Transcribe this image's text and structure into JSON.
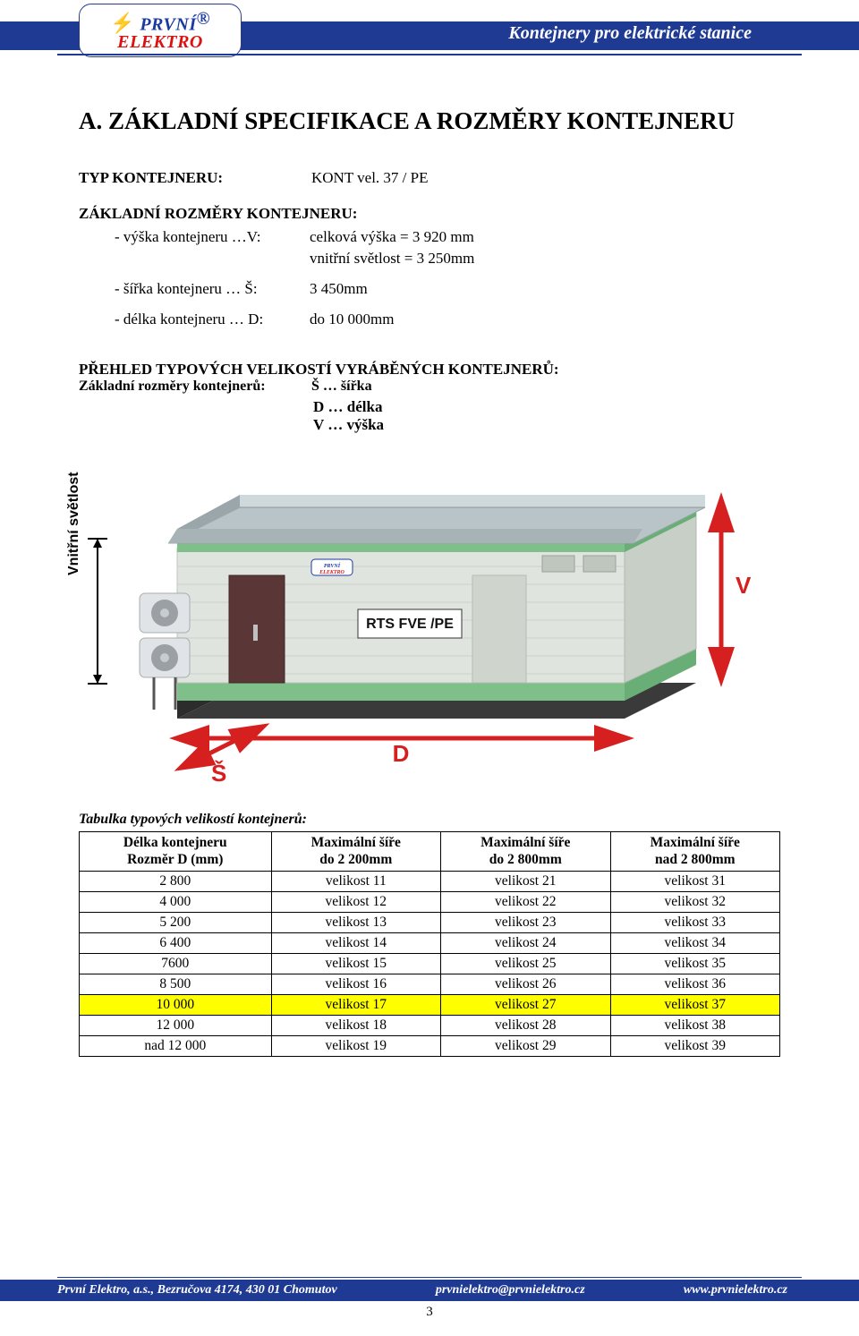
{
  "header": {
    "logo_line1": "PRVNÍ",
    "logo_line2": "ELEKTRO",
    "logo_reg": "®",
    "title": "Kontejnery pro elektrické stanice"
  },
  "section_title": "A. ZÁKLADNÍ SPECIFIKACE A ROZMĚRY KONTEJNERU",
  "spec": {
    "type_label": "TYP KONTEJNERU:",
    "type_value": "KONT vel. 37 / PE",
    "dims_head": "ZÁKLADNÍ ROZMĚRY KONTEJNERU:",
    "rows": [
      {
        "label": "- výška kontejneru …V:",
        "value": "celková výška  = 3 920 mm"
      },
      {
        "label": "",
        "value": "vnitřní světlost = 3 250mm"
      },
      {
        "label": "- šířka kontejneru … Š:",
        "value": "3 450mm"
      },
      {
        "label": "- délka kontejneru … D:",
        "value": "do 10 000mm"
      }
    ]
  },
  "overview": {
    "head": "PŘEHLED TYPOVÝCH VELIKOSTÍ VYRÁBĚNÝCH KONTEJNERŮ:",
    "sub_label": "Základní rozměry kontejnerů:",
    "s": "Š … šířka",
    "d": "D … délka",
    "v": "V … výška"
  },
  "diagram": {
    "vn_label": "Vnitřní světlost",
    "v_label": "V",
    "d_label": "D",
    "s_label": "Š",
    "panel_text": "RTS FVE /PE",
    "colors": {
      "roof_top": "#b9c4c8",
      "roof_side": "#8b969a",
      "wall_light": "#dfe4de",
      "wall_shadow": "#c8cfc7",
      "trim_green": "#7fbf8a",
      "base_dark": "#3a3a3a",
      "arrow_red": "#d62020",
      "door_dark": "#5a3636",
      "ac_body": "#e1e4e6",
      "ac_fan": "#9aa0a4",
      "logo_blue": "#1a3aa0"
    }
  },
  "table": {
    "title": "Tabulka typových velikostí kontejnerů:",
    "headers": [
      "Délka kontejneru\nRozměr D (mm)",
      "Maximální šíře\ndo 2 200mm",
      "Maximální šíře\ndo 2 800mm",
      "Maximální šíře\nnad 2 800mm"
    ],
    "rows": [
      {
        "d": "2 800",
        "c1": "velikost 11",
        "c2": "velikost 21",
        "c3": "velikost 31",
        "hl": false
      },
      {
        "d": "4 000",
        "c1": "velikost 12",
        "c2": "velikost 22",
        "c3": "velikost 32",
        "hl": false
      },
      {
        "d": "5 200",
        "c1": "velikost 13",
        "c2": "velikost 23",
        "c3": "velikost 33",
        "hl": false
      },
      {
        "d": "6 400",
        "c1": "velikost 14",
        "c2": "velikost 24",
        "c3": "velikost 34",
        "hl": false
      },
      {
        "d": "7600",
        "c1": "velikost 15",
        "c2": "velikost 25",
        "c3": "velikost 35",
        "hl": false
      },
      {
        "d": "8 500",
        "c1": "velikost 16",
        "c2": "velikost 26",
        "c3": "velikost 36",
        "hl": false
      },
      {
        "d": "10 000",
        "c1": "velikost 17",
        "c2": "velikost 27",
        "c3": "velikost 37",
        "hl": true
      },
      {
        "d": "12 000",
        "c1": "velikost 18",
        "c2": "velikost 28",
        "c3": "velikost 38",
        "hl": false
      },
      {
        "d": "nad 12 000",
        "c1": "velikost 19",
        "c2": "velikost 29",
        "c3": "velikost 39",
        "hl": false
      }
    ]
  },
  "footer": {
    "left": "První Elektro, a.s., Bezručova 4174, 430 01 Chomutov",
    "mid": "prvnielektro@prvnielektro.cz",
    "right": "www.prvnielektro.cz",
    "page": "3"
  }
}
